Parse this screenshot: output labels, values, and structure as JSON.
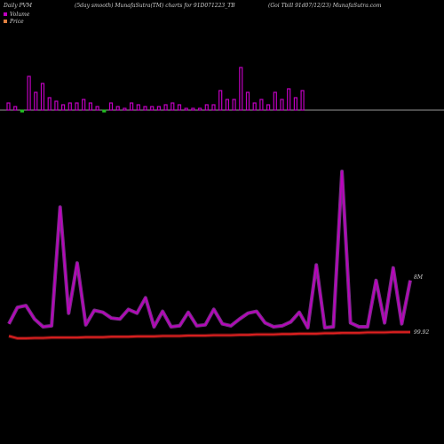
{
  "header": {
    "left": "Daily PVM",
    "mid": "(5day smooth) MunafaSutra(TM) charts for 91D071223_TB",
    "right": "(Goi Tbill 91d07/12/23) MunafaSutra.com"
  },
  "legend": [
    {
      "label": "Volume",
      "color": "#c000c0"
    },
    {
      "label": "Price",
      "color": "#e08040"
    }
  ],
  "chart_data": {
    "type": "line",
    "series": [
      {
        "name": "Volume",
        "kind": "bar",
        "color": "#c000c0",
        "values": [
          0.2,
          0.1,
          -0.05,
          0.95,
          0.5,
          0.75,
          0.35,
          0.25,
          0.15,
          0.2,
          0.2,
          0.3,
          0.2,
          0.1,
          -0.05,
          0.2,
          0.1,
          0.05,
          0.2,
          0.15,
          0.1,
          0.1,
          0.1,
          0.15,
          0.2,
          0.15,
          0.05,
          0.05,
          0.05,
          0.15,
          0.15,
          0.55,
          0.3,
          0.3,
          1.2,
          0.5,
          0.2,
          0.3,
          0.15,
          0.5,
          0.3,
          0.6,
          0.35,
          0.55
        ]
      },
      {
        "name": "Volume line",
        "color": "#c000c0",
        "values": [
          1.5,
          3.2,
          3.4,
          2.0,
          1.2,
          1.3,
          13.6,
          2.6,
          7.8,
          1.4,
          2.9,
          2.7,
          2.1,
          2.0,
          3.0,
          2.6,
          4.2,
          1.2,
          2.8,
          1.2,
          1.3,
          2.7,
          1.3,
          1.4,
          3.0,
          1.5,
          1.3,
          2.0,
          2.6,
          2.8,
          1.6,
          1.2,
          1.3,
          1.7,
          2.7,
          1.1,
          7.6,
          1.1,
          1.2,
          17.3,
          1.6,
          1.2,
          1.2,
          6.0,
          1.6,
          7.3,
          1.5,
          6.0
        ]
      },
      {
        "name": "Price line",
        "color": "#e02020",
        "values": [
          99.66,
          99.6,
          99.6,
          99.61,
          99.61,
          99.62,
          99.62,
          99.62,
          99.62,
          99.63,
          99.63,
          99.63,
          99.64,
          99.64,
          99.64,
          99.65,
          99.65,
          99.65,
          99.66,
          99.66,
          99.66,
          99.67,
          99.67,
          99.67,
          99.68,
          99.68,
          99.68,
          99.69,
          99.69,
          99.7,
          99.7,
          99.7,
          99.71,
          99.71,
          99.72,
          99.72,
          99.72,
          99.73,
          99.73,
          99.74,
          99.74,
          99.74,
          99.75,
          99.75,
          99.75,
          99.76,
          99.76,
          99.76
        ]
      }
    ],
    "right_labels": [
      "8M",
      "99.92"
    ]
  }
}
